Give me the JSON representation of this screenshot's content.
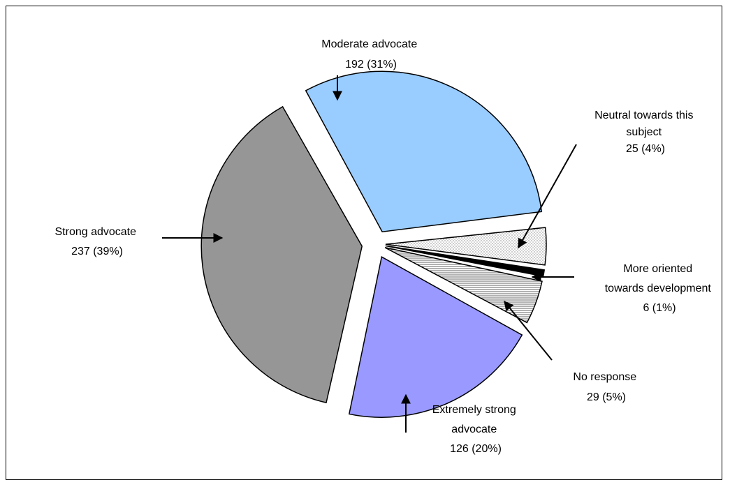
{
  "chart_data": {
    "type": "pie",
    "title": "",
    "slices": [
      {
        "name": "Moderate advocate",
        "value": 192,
        "percent": 31,
        "value_label": "192 (31%)",
        "color": "#99ccff",
        "pattern": "none"
      },
      {
        "name": "Neutral towards this subject",
        "value": 25,
        "percent": 4,
        "value_label": "25 (4%)",
        "color": "#ffffff",
        "pattern": "dots"
      },
      {
        "name": "More oriented towards development",
        "value": 6,
        "percent": 1,
        "value_label": "6 (1%)",
        "color": "#000000",
        "pattern": "none"
      },
      {
        "name": "No response",
        "value": 29,
        "percent": 5,
        "value_label": "29 (5%)",
        "color": "#ffffff",
        "pattern": "horizontal-lines"
      },
      {
        "name": "Extremely strong advocate",
        "value": 126,
        "percent": 20,
        "value_label": "126 (20%)",
        "color": "#9999ff",
        "pattern": "none"
      },
      {
        "name": "Strong advocate",
        "value": 237,
        "percent": 39,
        "value_label": "237 (39%)",
        "color": "#969696",
        "pattern": "none"
      }
    ],
    "labels": {
      "moderate": [
        "Moderate advocate",
        "192 (31%)"
      ],
      "neutral": [
        "Neutral towards this",
        "subject",
        "25 (4%)"
      ],
      "oriented": [
        "More oriented",
        "towards development",
        "6 (1%)"
      ],
      "noresp": [
        "No response",
        "29 (5%)"
      ],
      "extreme": [
        "Extremely strong",
        "advocate",
        "126 (20%)"
      ],
      "strong": [
        "Strong advocate",
        "237 (39%)"
      ]
    },
    "legend": "none"
  }
}
